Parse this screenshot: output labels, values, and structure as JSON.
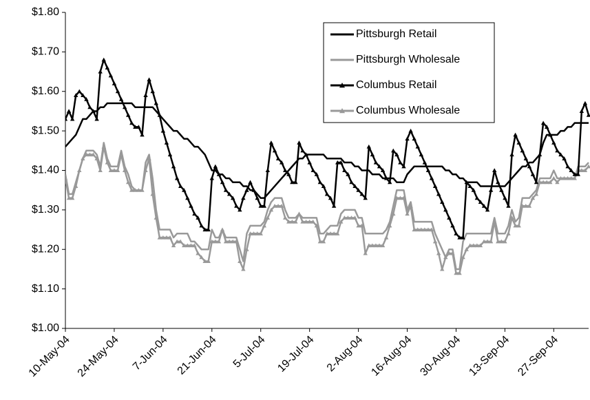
{
  "chart_data": {
    "type": "line",
    "categories": [
      "10-May-04",
      null,
      null,
      null,
      null,
      null,
      null,
      null,
      null,
      null,
      null,
      null,
      null,
      null,
      "24-May-04",
      null,
      null,
      null,
      null,
      null,
      null,
      null,
      null,
      null,
      null,
      null,
      null,
      null,
      "7-Jun-04",
      null,
      null,
      null,
      null,
      null,
      null,
      null,
      null,
      null,
      null,
      null,
      null,
      null,
      "21-Jun-04",
      null,
      null,
      null,
      null,
      null,
      null,
      null,
      null,
      null,
      null,
      null,
      null,
      null,
      "5-Jul-04",
      null,
      null,
      null,
      null,
      null,
      null,
      null,
      null,
      null,
      null,
      null,
      null,
      null,
      "19-Jul-04",
      null,
      null,
      null,
      null,
      null,
      null,
      null,
      null,
      null,
      null,
      null,
      null,
      null,
      "2-Aug-04",
      null,
      null,
      null,
      null,
      null,
      null,
      null,
      null,
      null,
      null,
      null,
      null,
      null,
      "16-Aug-04",
      null,
      null,
      null,
      null,
      null,
      null,
      null,
      null,
      null,
      null,
      null,
      null,
      null,
      "30-Aug-04",
      null,
      null,
      null,
      null,
      null,
      null,
      null,
      null,
      null,
      null,
      null,
      null,
      null,
      "13-Sep-04",
      null,
      null,
      null,
      null,
      null,
      null,
      null,
      null,
      null,
      null,
      null,
      null,
      null,
      "27-Sep-04",
      null,
      null,
      null,
      null,
      null,
      null,
      null,
      null,
      null,
      null
    ],
    "series": [
      {
        "name": "Pittsburgh Retail",
        "color": "#000000",
        "values": [
          1.46,
          1.47,
          1.48,
          1.49,
          1.51,
          1.53,
          1.53,
          1.54,
          1.55,
          1.55,
          1.56,
          1.56,
          1.57,
          1.57,
          1.57,
          1.57,
          1.57,
          1.57,
          1.57,
          1.57,
          1.56,
          1.56,
          1.56,
          1.56,
          1.56,
          1.56,
          1.55,
          1.54,
          1.53,
          1.52,
          1.51,
          1.5,
          1.5,
          1.49,
          1.48,
          1.48,
          1.47,
          1.46,
          1.46,
          1.45,
          1.44,
          1.42,
          1.4,
          1.4,
          1.39,
          1.39,
          1.38,
          1.38,
          1.37,
          1.37,
          1.37,
          1.36,
          1.36,
          1.35,
          1.35,
          1.34,
          1.33,
          1.33,
          1.34,
          1.35,
          1.36,
          1.37,
          1.38,
          1.39,
          1.4,
          1.41,
          1.42,
          1.43,
          1.43,
          1.44,
          1.44,
          1.44,
          1.44,
          1.44,
          1.44,
          1.43,
          1.43,
          1.43,
          1.43,
          1.43,
          1.42,
          1.42,
          1.42,
          1.41,
          1.41,
          1.4,
          1.4,
          1.4,
          1.39,
          1.39,
          1.39,
          1.38,
          1.38,
          1.38,
          1.38,
          1.37,
          1.37,
          1.37,
          1.39,
          1.4,
          1.41,
          1.41,
          1.41,
          1.41,
          1.41,
          1.41,
          1.41,
          1.41,
          1.41,
          1.4,
          1.4,
          1.39,
          1.39,
          1.38,
          1.38,
          1.37,
          1.37,
          1.37,
          1.37,
          1.36,
          1.36,
          1.36,
          1.36,
          1.36,
          1.36,
          1.36,
          1.36,
          1.37,
          1.38,
          1.39,
          1.4,
          1.41,
          1.41,
          1.42,
          1.42,
          1.43,
          1.44,
          1.47,
          1.49,
          1.49,
          1.49,
          1.49,
          1.5,
          1.5,
          1.51,
          1.51,
          1.52,
          1.52,
          1.52,
          1.52,
          1.52
        ]
      },
      {
        "name": "Pittsburgh Wholesale",
        "color": "#999999",
        "values": [
          1.39,
          1.34,
          1.34,
          1.37,
          1.4,
          1.43,
          1.45,
          1.45,
          1.45,
          1.44,
          1.41,
          1.47,
          1.43,
          1.41,
          1.41,
          1.41,
          1.45,
          1.41,
          1.39,
          1.36,
          1.35,
          1.35,
          1.35,
          1.42,
          1.44,
          1.38,
          1.3,
          1.25,
          1.25,
          1.25,
          1.25,
          1.23,
          1.24,
          1.24,
          1.24,
          1.24,
          1.22,
          1.22,
          1.21,
          1.2,
          1.2,
          1.2,
          1.25,
          1.23,
          1.23,
          1.25,
          1.23,
          1.23,
          1.23,
          1.23,
          1.2,
          1.17,
          1.24,
          1.26,
          1.26,
          1.26,
          1.26,
          1.27,
          1.3,
          1.32,
          1.33,
          1.33,
          1.33,
          1.3,
          1.28,
          1.28,
          1.28,
          1.29,
          1.28,
          1.28,
          1.28,
          1.28,
          1.28,
          1.24,
          1.24,
          1.25,
          1.26,
          1.26,
          1.26,
          1.29,
          1.3,
          1.3,
          1.3,
          1.3,
          1.28,
          1.28,
          1.24,
          1.24,
          1.24,
          1.24,
          1.24,
          1.24,
          1.25,
          1.27,
          1.31,
          1.35,
          1.35,
          1.35,
          1.3,
          1.32,
          1.27,
          1.27,
          1.27,
          1.27,
          1.27,
          1.27,
          1.24,
          1.22,
          1.2,
          1.18,
          1.2,
          1.2,
          1.15,
          1.15,
          1.22,
          1.24,
          1.24,
          1.24,
          1.24,
          1.24,
          1.24,
          1.24,
          1.24,
          1.28,
          1.24,
          1.24,
          1.24,
          1.26,
          1.3,
          1.27,
          1.28,
          1.33,
          1.33,
          1.33,
          1.34,
          1.35,
          1.38,
          1.38,
          1.38,
          1.38,
          1.4,
          1.38,
          1.38,
          1.38,
          1.38,
          1.38,
          1.38,
          1.41,
          1.41,
          1.41,
          1.42
        ]
      },
      {
        "name": "Columbus Retail",
        "color": "#000000",
        "marker": "triangle",
        "values": [
          1.53,
          1.55,
          1.53,
          1.59,
          1.6,
          1.59,
          1.58,
          1.56,
          1.55,
          1.53,
          1.65,
          1.68,
          1.66,
          1.64,
          1.62,
          1.6,
          1.58,
          1.56,
          1.54,
          1.52,
          1.51,
          1.51,
          1.49,
          1.59,
          1.63,
          1.6,
          1.57,
          1.54,
          1.5,
          1.47,
          1.44,
          1.41,
          1.38,
          1.36,
          1.35,
          1.33,
          1.31,
          1.29,
          1.28,
          1.26,
          1.25,
          1.25,
          1.38,
          1.41,
          1.39,
          1.37,
          1.35,
          1.34,
          1.33,
          1.31,
          1.3,
          1.33,
          1.35,
          1.37,
          1.35,
          1.33,
          1.31,
          1.31,
          1.4,
          1.47,
          1.45,
          1.43,
          1.42,
          1.4,
          1.39,
          1.37,
          1.37,
          1.47,
          1.45,
          1.44,
          1.42,
          1.4,
          1.39,
          1.37,
          1.36,
          1.34,
          1.33,
          1.31,
          1.42,
          1.42,
          1.4,
          1.39,
          1.37,
          1.36,
          1.35,
          1.34,
          1.33,
          1.46,
          1.44,
          1.42,
          1.41,
          1.4,
          1.38,
          1.37,
          1.45,
          1.44,
          1.42,
          1.41,
          1.48,
          1.5,
          1.48,
          1.46,
          1.44,
          1.42,
          1.4,
          1.38,
          1.36,
          1.34,
          1.32,
          1.3,
          1.28,
          1.26,
          1.24,
          1.23,
          1.23,
          1.37,
          1.36,
          1.35,
          1.33,
          1.32,
          1.31,
          1.3,
          1.35,
          1.4,
          1.37,
          1.35,
          1.33,
          1.31,
          1.44,
          1.49,
          1.47,
          1.45,
          1.43,
          1.41,
          1.39,
          1.37,
          1.44,
          1.52,
          1.51,
          1.49,
          1.47,
          1.45,
          1.44,
          1.43,
          1.41,
          1.4,
          1.39,
          1.39,
          1.55,
          1.57,
          1.54
        ]
      },
      {
        "name": "Columbus Wholesale",
        "color": "#999999",
        "marker": "triangle",
        "values": [
          1.38,
          1.33,
          1.33,
          1.36,
          1.4,
          1.43,
          1.44,
          1.44,
          1.44,
          1.43,
          1.4,
          1.46,
          1.42,
          1.4,
          1.4,
          1.4,
          1.44,
          1.4,
          1.37,
          1.35,
          1.35,
          1.35,
          1.35,
          1.4,
          1.43,
          1.34,
          1.28,
          1.23,
          1.23,
          1.23,
          1.23,
          1.21,
          1.22,
          1.22,
          1.21,
          1.21,
          1.21,
          1.21,
          1.19,
          1.18,
          1.17,
          1.17,
          1.22,
          1.22,
          1.22,
          1.25,
          1.22,
          1.22,
          1.22,
          1.22,
          1.17,
          1.15,
          1.2,
          1.24,
          1.24,
          1.24,
          1.24,
          1.26,
          1.28,
          1.3,
          1.31,
          1.31,
          1.31,
          1.28,
          1.27,
          1.27,
          1.27,
          1.29,
          1.27,
          1.27,
          1.27,
          1.27,
          1.26,
          1.22,
          1.22,
          1.24,
          1.24,
          1.24,
          1.24,
          1.27,
          1.28,
          1.28,
          1.28,
          1.28,
          1.26,
          1.26,
          1.19,
          1.21,
          1.21,
          1.21,
          1.21,
          1.21,
          1.23,
          1.26,
          1.29,
          1.33,
          1.33,
          1.33,
          1.29,
          1.31,
          1.25,
          1.25,
          1.25,
          1.25,
          1.25,
          1.25,
          1.22,
          1.19,
          1.15,
          1.18,
          1.19,
          1.19,
          1.14,
          1.14,
          1.18,
          1.2,
          1.21,
          1.21,
          1.21,
          1.21,
          1.22,
          1.22,
          1.22,
          1.27,
          1.22,
          1.22,
          1.22,
          1.24,
          1.28,
          1.26,
          1.26,
          1.31,
          1.31,
          1.31,
          1.33,
          1.34,
          1.37,
          1.37,
          1.37,
          1.37,
          1.38,
          1.37,
          1.38,
          1.38,
          1.38,
          1.38,
          1.38,
          1.4,
          1.4,
          1.4,
          1.41
        ]
      }
    ],
    "ylim": [
      1.0,
      1.8
    ],
    "yticks": [
      {
        "value": 1.0,
        "label": "$1.00"
      },
      {
        "value": 1.1,
        "label": "$1.10"
      },
      {
        "value": 1.2,
        "label": "$1.20"
      },
      {
        "value": 1.3,
        "label": "$1.30"
      },
      {
        "value": 1.4,
        "label": "$1.40"
      },
      {
        "value": 1.5,
        "label": "$1.50"
      },
      {
        "value": 1.6,
        "label": "$1.60"
      },
      {
        "value": 1.7,
        "label": "$1.70"
      },
      {
        "value": 1.8,
        "label": "$1.80"
      }
    ],
    "grid": false,
    "legend": "upper right"
  }
}
